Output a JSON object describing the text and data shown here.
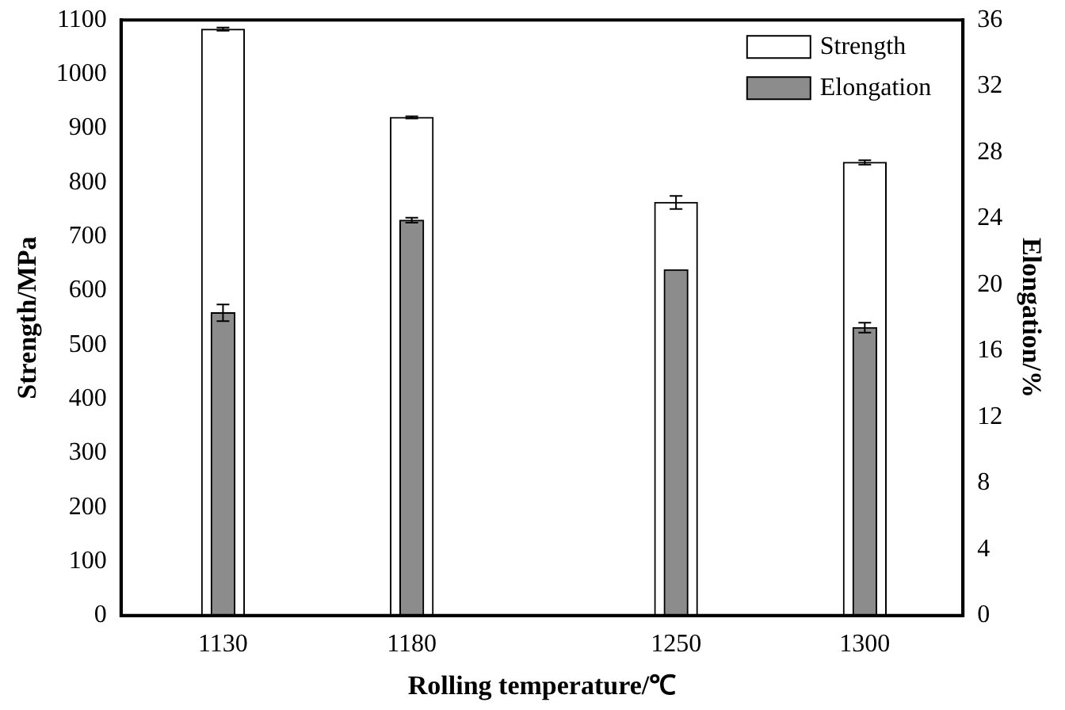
{
  "chart_data": {
    "type": "bar",
    "xlabel": "Rolling temperature/℃",
    "ylabel": "Strength/MPa",
    "y2label": "Elongation/%",
    "x": [
      1130,
      1180,
      1250,
      1300
    ],
    "series": [
      {
        "name": "Strength",
        "color": "#000000",
        "values": [
          1083,
          920,
          763,
          837
        ],
        "errors": [
          3,
          2,
          12,
          4
        ]
      },
      {
        "name": "Elongation",
        "color": "#8c8c8c",
        "axis": "y2",
        "values": [
          18.3,
          23.9,
          20.9,
          17.4
        ],
        "errors": [
          0.5,
          0.15,
          null,
          0.3
        ]
      }
    ],
    "xlim": [
      1103,
      1326
    ],
    "xticks": [
      1130,
      1180,
      1250,
      1300
    ],
    "ylim": [
      0,
      1100
    ],
    "yticks": [
      0,
      100,
      200,
      300,
      400,
      500,
      600,
      700,
      800,
      900,
      1000,
      1100
    ],
    "y2lim": [
      0,
      36
    ],
    "y2ticks": [
      0,
      4,
      8,
      12,
      16,
      20,
      24,
      28,
      32,
      36
    ],
    "grid": false,
    "legend": "top right"
  }
}
